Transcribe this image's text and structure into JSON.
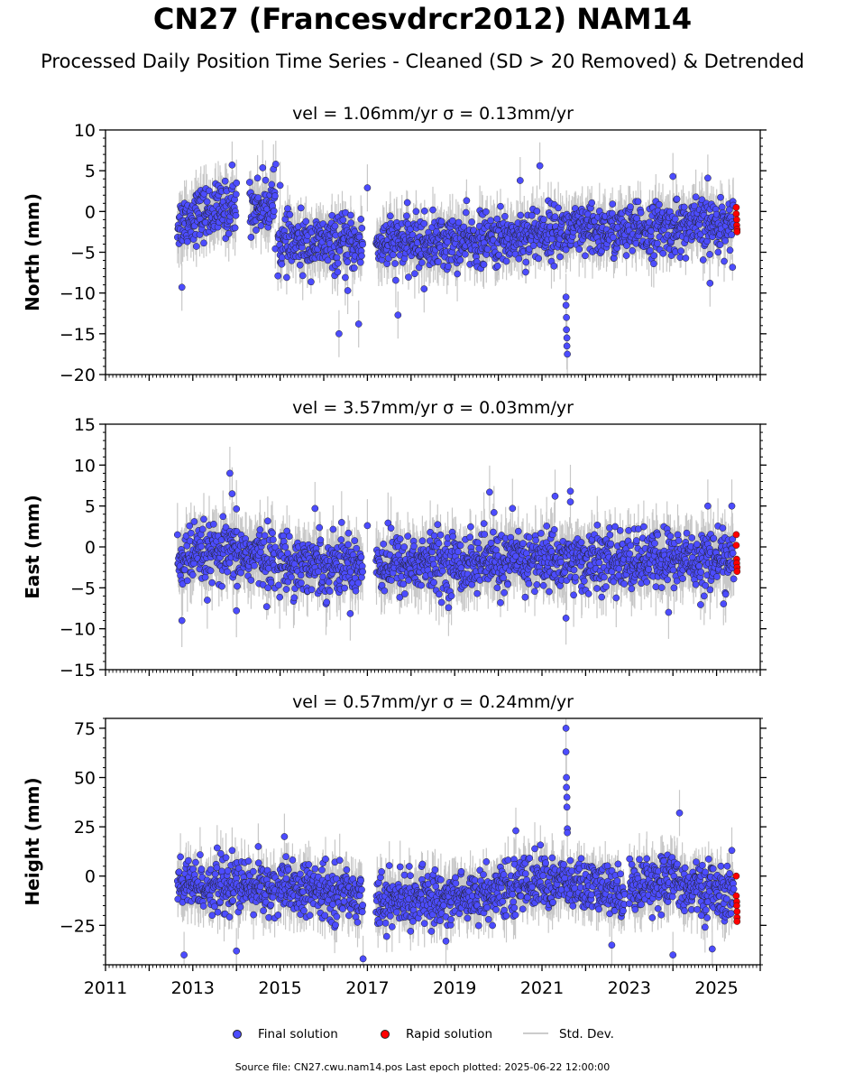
{
  "title": "CN27 (Francesvdrcr2012) NAM14",
  "subtitle": "Processed Daily Position Time Series - Cleaned (SD > 20 Removed) & Detrended",
  "footer": "Source file: CN27.cwu.nam14.pos  Last epoch plotted: 2025-06-22 12:00:00",
  "legend": {
    "final": "Final solution",
    "rapid": "Rapid solution",
    "std": "Std. Dev."
  },
  "colors": {
    "final": "#4c4cff",
    "rapid": "#ff0000",
    "std": "#c8c8c8",
    "marker_edge": "#222222"
  },
  "chart_data": [
    {
      "type": "scatter",
      "title": "vel = 1.06mm/yr   σ = 0.13mm/yr",
      "ylabel": "North (mm)",
      "xlim": [
        2011,
        2026
      ],
      "ylim": [
        -20,
        10
      ],
      "yticks": [
        -20,
        -15,
        -10,
        -5,
        0,
        5,
        10
      ],
      "xticks": [
        2011,
        2013,
        2015,
        2017,
        2019,
        2021,
        2023,
        2025
      ],
      "show_x_tick_labels": false,
      "series": [
        {
          "name": "Final solution",
          "segments": [
            {
              "x": [
                2012.65,
                2013.0,
                2013.5,
                2014.0
              ],
              "mean": [
                -1.5,
                -0.5,
                0.0,
                0.5
              ]
            },
            {
              "x": [
                2014.3,
                2014.9
              ],
              "mean": [
                0.5,
                1.0
              ]
            },
            {
              "x": [
                2014.95,
                2015.5,
                2016.0,
                2016.9
              ],
              "mean": [
                -4.0,
                -4.0,
                -4.0,
                -4.0
              ]
            },
            {
              "x": [
                2017.2,
                2018.0,
                2019.0,
                2020.0,
                2021.0,
                2022.0,
                2023.0,
                2024.0,
                2025.4
              ],
              "mean": [
                -4.0,
                -3.8,
                -3.8,
                -3.5,
                -2.5,
                -2.5,
                -2.5,
                -2.0,
                -1.5
              ]
            }
          ],
          "scatter_sd": 1.6,
          "outliers": {
            "x": [
              2012.75,
              2013.9,
              2014.0,
              2014.9,
              2015.0,
              2016.35,
              2016.55,
              2016.8,
              2017.0,
              2017.7,
              2018.3,
              2020.5,
              2020.95,
              2021.55,
              2021.55,
              2021.56,
              2021.56,
              2021.57,
              2021.57,
              2021.58,
              2024.0,
              2024.8,
              2024.85
            ],
            "y": [
              -9.3,
              5.7,
              3.5,
              5.8,
              3.2,
              -15.0,
              -9.7,
              -13.8,
              2.9,
              -12.7,
              -9.5,
              3.8,
              5.6,
              -10.5,
              -11.5,
              -13.0,
              -14.5,
              -15.5,
              -16.5,
              -17.5,
              4.3,
              4.1,
              -8.8
            ]
          }
        },
        {
          "name": "Rapid solution",
          "x": [
            2025.45,
            2025.45,
            2025.46,
            2025.46,
            2025.47,
            2025.47
          ],
          "y": [
            0.5,
            -0.3,
            -1.0,
            -1.7,
            -2.2,
            -2.5
          ]
        }
      ]
    },
    {
      "type": "scatter",
      "title": "vel = 3.57mm/yr   σ = 0.03mm/yr",
      "ylabel": "East (mm)",
      "xlim": [
        2011,
        2026
      ],
      "ylim": [
        -15,
        15
      ],
      "yticks": [
        -15,
        -10,
        -5,
        0,
        5,
        10,
        15
      ],
      "xticks": [
        2011,
        2013,
        2015,
        2017,
        2019,
        2021,
        2023,
        2025
      ],
      "show_x_tick_labels": false,
      "series": [
        {
          "name": "Final solution",
          "segments": [
            {
              "x": [
                2012.65,
                2013.5,
                2014.3,
                2014.9
              ],
              "mean": [
                -1.5,
                -1.0,
                -1.0,
                -1.5
              ]
            },
            {
              "x": [
                2014.95,
                2015.5,
                2016.0,
                2016.9
              ],
              "mean": [
                -1.8,
                -2.0,
                -2.2,
                -2.0
              ]
            },
            {
              "x": [
                2017.2,
                2018.0,
                2019.0,
                2020.0,
                2021.0,
                2022.0,
                2023.0,
                2024.0,
                2025.4
              ],
              "mean": [
                -2.0,
                -2.0,
                -2.0,
                -1.8,
                -1.5,
                -1.8,
                -1.8,
                -1.5,
                -1.5
              ]
            }
          ],
          "scatter_sd": 1.8,
          "outliers": {
            "x": [
              2012.75,
              2013.85,
              2013.9,
              2014.0,
              2015.8,
              2017.0,
              2019.8,
              2019.9,
              2021.3,
              2021.65,
              2021.65,
              2021.55,
              2023.9,
              2024.8,
              2025.35
            ],
            "y": [
              -9.0,
              9.0,
              6.5,
              -7.8,
              4.7,
              2.6,
              6.7,
              4.2,
              6.2,
              6.8,
              5.5,
              -8.7,
              -8.0,
              5.0,
              5.0
            ]
          }
        },
        {
          "name": "Rapid solution",
          "x": [
            2025.45,
            2025.45,
            2025.46,
            2025.46,
            2025.47,
            2025.47
          ],
          "y": [
            1.5,
            0.2,
            -1.5,
            -2.0,
            -2.5,
            -3.0
          ]
        }
      ]
    },
    {
      "type": "scatter",
      "title": "vel = 0.57mm/yr   σ = 0.24mm/yr",
      "ylabel": "Height (mm)",
      "xlim": [
        2011,
        2026
      ],
      "ylim": [
        -45,
        80
      ],
      "yticks": [
        -25,
        0,
        25,
        50,
        75
      ],
      "xticks": [
        2011,
        2013,
        2015,
        2017,
        2019,
        2021,
        2023,
        2025
      ],
      "show_x_tick_labels": true,
      "series": [
        {
          "name": "Final solution",
          "segments": [
            {
              "x": [
                2012.65,
                2013.5,
                2014.3,
                2014.9
              ],
              "mean": [
                -5,
                -5,
                -6,
                -6
              ]
            },
            {
              "x": [
                2014.95,
                2015.5,
                2016.0,
                2016.9
              ],
              "mean": [
                -7,
                -7,
                -8,
                -9
              ]
            },
            {
              "x": [
                2017.2,
                2018.0,
                2019.0,
                2020.0,
                2020.8,
                2021.5,
                2022.0,
                2022.9
              ],
              "mean": [
                -13,
                -12,
                -11,
                -8,
                -2,
                -4,
                -6,
                -8
              ]
            },
            {
              "x": [
                2023.0,
                2023.5,
                2024.0,
                2024.5,
                2025.4
              ],
              "mean": [
                -6,
                -2,
                -3,
                -6,
                -10
              ]
            }
          ],
          "scatter_sd": 6.5,
          "outliers": {
            "x": [
              2012.8,
              2013.9,
              2014.0,
              2014.5,
              2015.1,
              2016.9,
              2018.8,
              2020.4,
              2021.55,
              2021.55,
              2021.56,
              2021.56,
              2021.57,
              2021.57,
              2021.58,
              2021.58,
              2022.6,
              2024.0,
              2024.15,
              2024.65,
              2024.9,
              2025.35
            ],
            "y": [
              -40,
              13,
              -38,
              15,
              20,
              -42,
              -33,
              23,
              75,
              63,
              50,
              45,
              40,
              35,
              24,
              22,
              -35,
              -40,
              32,
              -20,
              -37,
              13
            ]
          }
        },
        {
          "name": "Rapid solution",
          "x": [
            2025.45,
            2025.45,
            2025.46,
            2025.46,
            2025.47,
            2025.47,
            2025.47
          ],
          "y": [
            0,
            -10,
            -13,
            -15,
            -18,
            -21,
            -23
          ]
        }
      ]
    }
  ]
}
